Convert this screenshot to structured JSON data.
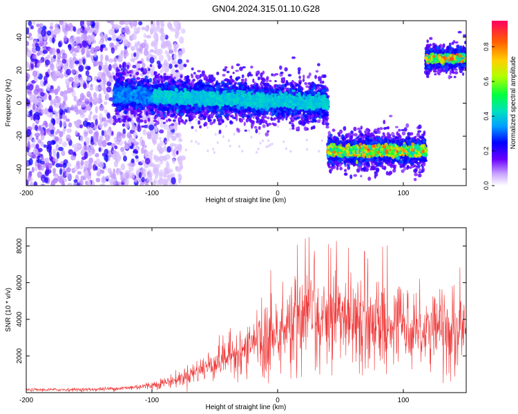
{
  "title": "GN04.2024.315.01.10.G28",
  "chart_data": [
    {
      "type": "heatmap",
      "xlabel": "Height of straight line (km)",
      "ylabel": "Frequency (Hz)",
      "xlim": [
        -200,
        150
      ],
      "ylim": [
        -50,
        50
      ],
      "x_ticks": [
        -200,
        -100,
        0,
        100
      ],
      "y_ticks": [
        -40,
        -20,
        0,
        20,
        40
      ],
      "colorbar": {
        "label": "Normalized spectral amplitude",
        "range": [
          0,
          0.95
        ],
        "ticks": [
          "0.0",
          "0.2",
          "0.4",
          "0.6",
          "0.8"
        ]
      },
      "segments": [
        {
          "x_start": -130,
          "x_end": 40,
          "f_start": 5,
          "f_end": 0,
          "width_hz": 5
        },
        {
          "x_start": 40,
          "x_end": 118,
          "f_start": -29,
          "f_end": -29,
          "width_hz": 4
        },
        {
          "x_start": 118,
          "x_end": 150,
          "f_start": 27,
          "f_end": 27,
          "width_hz": 3
        }
      ],
      "noise_region": {
        "x_start": -200,
        "x_end": -100
      }
    },
    {
      "type": "line",
      "xlabel": "Height of straight line (km)",
      "ylabel": "SNR (10 * v/v)",
      "xlim": [
        -200,
        150
      ],
      "ylim": [
        0,
        9000
      ],
      "x_ticks": [
        -200,
        -100,
        0,
        100
      ],
      "y_ticks": [
        2000,
        4000,
        6000,
        8000
      ],
      "color": "#ee3333",
      "envelope": {
        "x": [
          -200,
          -150,
          -120,
          -100,
          -80,
          -60,
          -40,
          -20,
          0,
          20,
          40,
          60,
          80,
          100,
          120,
          150
        ],
        "mean": [
          150,
          170,
          250,
          400,
          700,
          1300,
          2000,
          2700,
          3500,
          4000,
          4300,
          4100,
          3900,
          3800,
          3500,
          3400
        ]
      }
    }
  ]
}
